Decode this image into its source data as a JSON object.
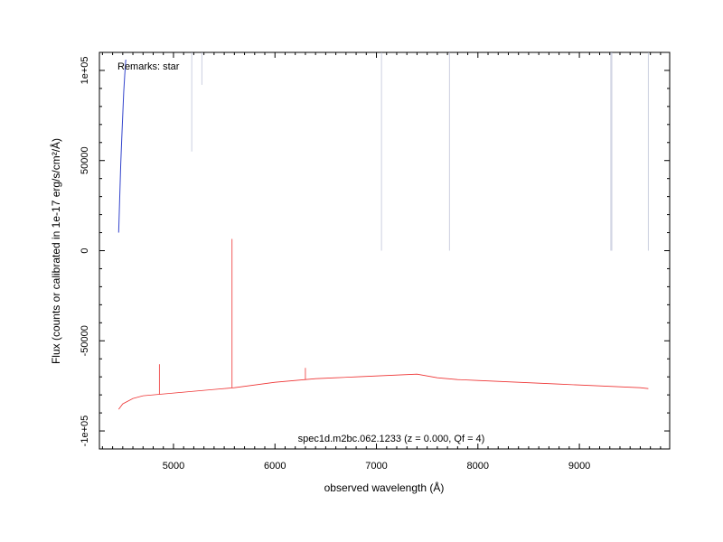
{
  "chart_data": {
    "type": "line",
    "xlabel": "observed wavelength (Å)",
    "ylabel": "Flux (counts or calibrated in 1e-17 erg/s/cm²/Å)",
    "xlim": [
      4270,
      9890
    ],
    "ylim": [
      -110000,
      110000
    ],
    "x_ticks": [
      5000,
      6000,
      7000,
      8000,
      9000
    ],
    "x_tick_labels": [
      "5000",
      "6000",
      "7000",
      "8000",
      "9000"
    ],
    "y_ticks": [
      -100000,
      -50000,
      0,
      50000,
      100000
    ],
    "y_tick_labels": [
      "-1e+05",
      "-50000",
      "0",
      "50000",
      "1e+05"
    ],
    "remark": "Remarks: star",
    "object_label": "spec1d.m2bc.062.1233 (z = 0.000, Qf = 4)",
    "grid": false,
    "colors": {
      "spectrum": "#ee3333",
      "continuum": "#3344cc",
      "sky": "#aab0cc"
    },
    "series": [
      {
        "kind": "continuum",
        "x": [
          4460,
          4470,
          4480,
          4490,
          4500,
          4510,
          4520,
          4530
        ],
        "y": [
          10000,
          30000,
          48000,
          62000,
          75000,
          88000,
          98000,
          106000
        ]
      },
      {
        "kind": "spectrum",
        "x": [
          4460,
          4500,
          4600,
          4700,
          4800,
          4900,
          5000,
          5200,
          5400,
          5600,
          5800,
          6000,
          6200,
          6400,
          6600,
          6800,
          7000,
          7200,
          7400,
          7500,
          7600,
          7700,
          7800,
          8000,
          8200,
          8400,
          8600,
          8800,
          9000,
          9200,
          9400,
          9600,
          9680
        ],
        "y": [
          -88000,
          -85000,
          -82000,
          -80500,
          -80000,
          -79500,
          -79000,
          -78000,
          -77000,
          -76000,
          -74500,
          -73000,
          -72000,
          -71000,
          -70500,
          -70000,
          -69500,
          -69000,
          -68500,
          -69500,
          -70500,
          -71000,
          -71500,
          -72000,
          -72500,
          -73000,
          -73500,
          -74000,
          -74500,
          -75000,
          -75500,
          -76000,
          -76500
        ]
      }
    ],
    "emission_spikes": [
      {
        "x": 5577,
        "y": 6500
      },
      {
        "x": 4861,
        "y": -63000
      },
      {
        "x": 6300,
        "y": -65000
      }
    ],
    "sky_lines": [
      {
        "x": 5180,
        "y_from": 55000,
        "y_to": 110000
      },
      {
        "x": 5280,
        "y_from": 92000,
        "y_to": 110000
      },
      {
        "x": 7050,
        "y_from": 0,
        "y_to": 110000
      },
      {
        "x": 7720,
        "y_from": 0,
        "y_to": 110000
      },
      {
        "x": 9310,
        "y_from": 0,
        "y_to": 110000
      },
      {
        "x": 9320,
        "y_from": 0,
        "y_to": 110000
      },
      {
        "x": 9680,
        "y_from": 0,
        "y_to": 110000
      }
    ]
  }
}
